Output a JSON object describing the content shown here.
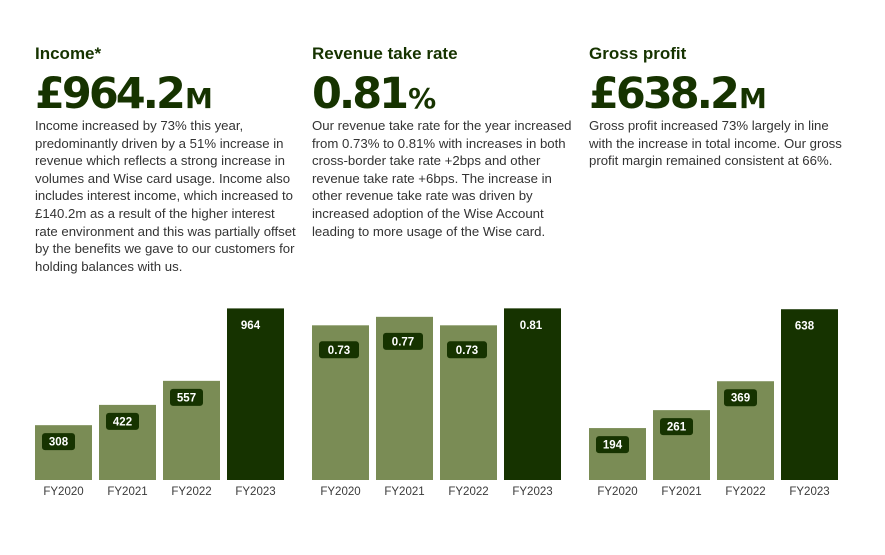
{
  "colors": {
    "bar": "#7a8c55",
    "bar_highlight": "#163300",
    "label_bg": "#163300",
    "title": "#163300"
  },
  "panels": [
    {
      "title": "Income*",
      "value": "£964.2",
      "unit": "M",
      "description": "Income increased by 73% this year, predominantly driven by a 51% increase in revenue which reflects a strong increase in volumes and Wise card usage. Income also includes interest income, which increased to £140.2m as a result of the higher interest rate environment and this was partially offset by the benefits we gave to our customers for holding balances with us."
    },
    {
      "title": "Revenue take rate",
      "value": "0.81",
      "unit": "%",
      "description": "Our revenue take rate for the year increased from 0.73% to 0.81% with increases in both cross-border take rate +2bps and other revenue take rate +6bps. The increase in other revenue take rate was driven by increased adoption of the Wise Account leading to more usage of the Wise card."
    },
    {
      "title": "Gross profit",
      "value": "£638.2",
      "unit": "M",
      "description": "Gross profit increased 73% largely in line with the increase in total income. Our gross profit margin remained consistent at 66%."
    }
  ],
  "chart_data": [
    {
      "type": "bar",
      "categories": [
        "FY2020",
        "FY2021",
        "FY2022",
        "FY2023"
      ],
      "values": [
        308,
        422,
        557,
        964
      ],
      "labels": [
        "308",
        "422",
        "557",
        "964"
      ],
      "highlight_index": 3,
      "ylim": [
        0,
        1000
      ]
    },
    {
      "type": "bar",
      "categories": [
        "FY2020",
        "FY2021",
        "FY2022",
        "FY2023"
      ],
      "values": [
        0.73,
        0.77,
        0.73,
        0.81
      ],
      "labels": [
        "0.73",
        "0.77",
        "0.73",
        "0.81"
      ],
      "highlight_index": 3,
      "ylim": [
        0,
        0.84
      ]
    },
    {
      "type": "bar",
      "categories": [
        "FY2020",
        "FY2021",
        "FY2022",
        "FY2023"
      ],
      "values": [
        194,
        261,
        369,
        638
      ],
      "labels": [
        "194",
        "261",
        "369",
        "638"
      ],
      "highlight_index": 3,
      "ylim": [
        0,
        665
      ]
    }
  ]
}
